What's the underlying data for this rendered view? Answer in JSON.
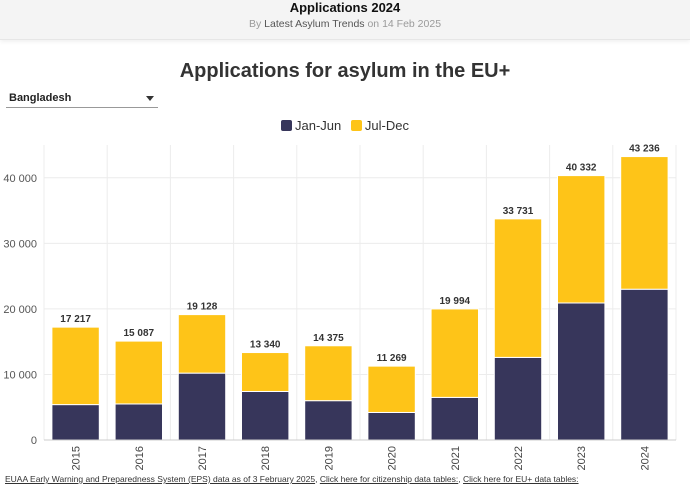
{
  "header": {
    "title": "Applications 2024",
    "byline_prefix": "By",
    "byline_source": "Latest Asylum Trends",
    "byline_suffix": "on 14 Feb 2025"
  },
  "filter": {
    "selected": "Bangladesh"
  },
  "footer": {
    "source_link": "EUAA Early Warning and Preparedness System (EPS) data as of 3 February 2025",
    "citizenship_link": "Click here for citizenship data tables:",
    "eu_link": "Click here for EU+ data tables:",
    "separator": ","
  },
  "chart_data": {
    "type": "bar",
    "stacked": true,
    "title": "Applications for asylum in the EU+",
    "categories": [
      "2015",
      "2016",
      "2017",
      "2018",
      "2019",
      "2020",
      "2021",
      "2022",
      "2023",
      "2024"
    ],
    "series": [
      {
        "name": "Jan-Jun",
        "color": "#37365b",
        "values": [
          5400,
          5500,
          10200,
          7400,
          6000,
          4200,
          6500,
          12600,
          20900,
          23000
        ]
      },
      {
        "name": "Jul-Dec",
        "color": "#fec418",
        "values": [
          11817,
          9587,
          8928,
          5940,
          8375,
          7069,
          13494,
          21131,
          19432,
          20236
        ]
      }
    ],
    "totals": [
      17217,
      15087,
      19128,
      13340,
      14375,
      11269,
      19994,
      33731,
      40332,
      43236
    ],
    "total_labels": [
      "17 217",
      "15 087",
      "19 128",
      "13 340",
      "14 375",
      "11 269",
      "19 994",
      "33 731",
      "40 332",
      "43 236"
    ],
    "y_ticks": [
      0,
      10000,
      20000,
      30000,
      40000
    ],
    "y_tick_labels": [
      "0",
      "10 000",
      "20 000",
      "30 000",
      "40 000"
    ],
    "ylim": [
      0,
      45000
    ],
    "xlabel": "",
    "ylabel": "",
    "legend_position": "top-center",
    "grid": true
  }
}
